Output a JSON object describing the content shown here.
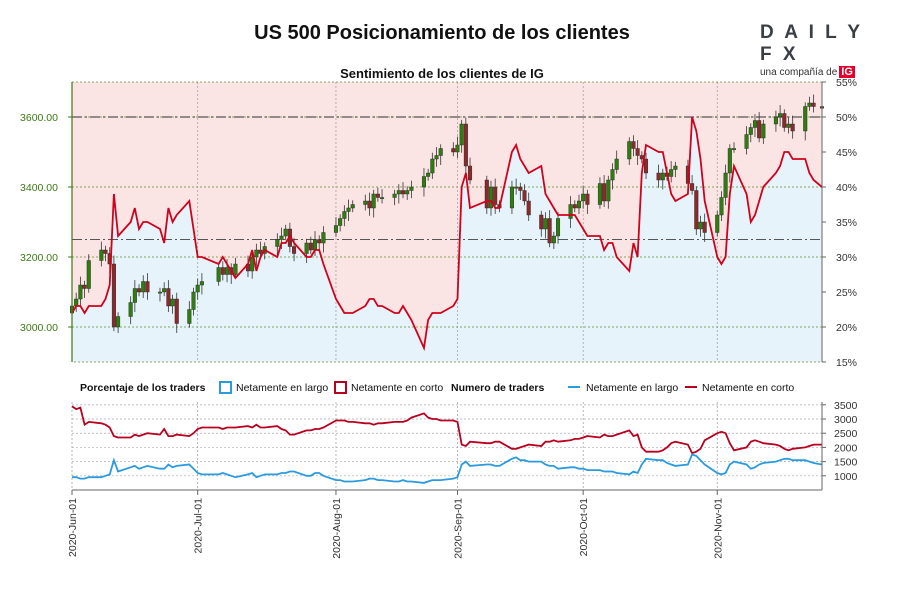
{
  "title": "US 500 Posicionamiento de los clientes",
  "logo": {
    "name": "DAILYFX",
    "tagline": "una compañía de",
    "brand": "IG"
  },
  "colors": {
    "net_long_fill": "#e6f3fb",
    "net_short_fill": "#fbe4e4",
    "sentiment_line": "#d0021b",
    "long_line": "#2b9be0",
    "short_line": "#b8001f",
    "candle_up": "#2e7d0e",
    "candle_down": "#8b2a2a",
    "price_axis": "#3b7a12"
  },
  "chart_data": [
    {
      "type": "line",
      "title": "Sentimiento de los clientes de IG",
      "x_dates": [
        "2020-06-01",
        "2020-06-02",
        "2020-06-03",
        "2020-06-04",
        "2020-06-05",
        "2020-06-08",
        "2020-06-09",
        "2020-06-10",
        "2020-06-11",
        "2020-06-12",
        "2020-06-15",
        "2020-06-16",
        "2020-06-17",
        "2020-06-18",
        "2020-06-19",
        "2020-06-22",
        "2020-06-23",
        "2020-06-24",
        "2020-06-25",
        "2020-06-26",
        "2020-06-29",
        "2020-06-30",
        "2020-07-01",
        "2020-07-02",
        "2020-07-06",
        "2020-07-07",
        "2020-07-08",
        "2020-07-09",
        "2020-07-10",
        "2020-07-13",
        "2020-07-14",
        "2020-07-15",
        "2020-07-16",
        "2020-07-17",
        "2020-07-20",
        "2020-07-21",
        "2020-07-22",
        "2020-07-23",
        "2020-07-24",
        "2020-07-27",
        "2020-07-28",
        "2020-07-29",
        "2020-07-30",
        "2020-07-31",
        "2020-08-03",
        "2020-08-04",
        "2020-08-05",
        "2020-08-06",
        "2020-08-07",
        "2020-08-10",
        "2020-08-11",
        "2020-08-12",
        "2020-08-13",
        "2020-08-14",
        "2020-08-17",
        "2020-08-18",
        "2020-08-19",
        "2020-08-20",
        "2020-08-21",
        "2020-08-24",
        "2020-08-25",
        "2020-08-26",
        "2020-08-27",
        "2020-08-28",
        "2020-08-31",
        "2020-09-01",
        "2020-09-02",
        "2020-09-03",
        "2020-09-04",
        "2020-09-08",
        "2020-09-09",
        "2020-09-10",
        "2020-09-11",
        "2020-09-14",
        "2020-09-15",
        "2020-09-16",
        "2020-09-17",
        "2020-09-18",
        "2020-09-21",
        "2020-09-22",
        "2020-09-23",
        "2020-09-24",
        "2020-09-25",
        "2020-09-28",
        "2020-09-29",
        "2020-09-30",
        "2020-10-01",
        "2020-10-02",
        "2020-10-05",
        "2020-10-06",
        "2020-10-07",
        "2020-10-08",
        "2020-10-09",
        "2020-10-12",
        "2020-10-13",
        "2020-10-14",
        "2020-10-15",
        "2020-10-16",
        "2020-10-19",
        "2020-10-20",
        "2020-10-21",
        "2020-10-22",
        "2020-10-23",
        "2020-10-26",
        "2020-10-27",
        "2020-10-28",
        "2020-10-29",
        "2020-10-30",
        "2020-11-02",
        "2020-11-03",
        "2020-11-04",
        "2020-11-05",
        "2020-11-06",
        "2020-11-09",
        "2020-11-10",
        "2020-11-11",
        "2020-11-12",
        "2020-11-13",
        "2020-11-16",
        "2020-11-17",
        "2020-11-18",
        "2020-11-19",
        "2020-11-20",
        "2020-11-23",
        "2020-11-24",
        "2020-11-25",
        "2020-11-27"
      ],
      "price_close": [
        3060,
        3080,
        3120,
        3110,
        3190,
        3220,
        3210,
        3180,
        3000,
        3030,
        3070,
        3110,
        3100,
        3130,
        3100,
        3100,
        3110,
        3060,
        3080,
        3010,
        3050,
        3100,
        3120,
        3130,
        3170,
        3150,
        3170,
        3150,
        3180,
        3160,
        3200,
        3220,
        3210,
        3230,
        3250,
        3260,
        3280,
        3230,
        3210,
        3240,
        3220,
        3250,
        3240,
        3270,
        3290,
        3310,
        3330,
        3340,
        3350,
        3360,
        3340,
        3380,
        3370,
        3370,
        3380,
        3390,
        3380,
        3390,
        3400,
        3430,
        3440,
        3480,
        3490,
        3510,
        3500,
        3520,
        3580,
        3460,
        3420,
        3340,
        3400,
        3350,
        3340,
        3400,
        3400,
        3390,
        3360,
        3320,
        3280,
        3310,
        3240,
        3260,
        3310,
        3350,
        3340,
        3360,
        3380,
        3350,
        3410,
        3360,
        3420,
        3450,
        3480,
        3530,
        3510,
        3490,
        3480,
        3440,
        3420,
        3440,
        3430,
        3450,
        3460,
        3410,
        3390,
        3280,
        3300,
        3270,
        3320,
        3370,
        3440,
        3510,
        3510,
        3550,
        3570,
        3590,
        3540,
        3580,
        3600,
        3610,
        3570,
        3580,
        3560,
        3630,
        3640,
        3630,
        3625
      ],
      "sentiment_pct": [
        22,
        23,
        23,
        22,
        23,
        23,
        24,
        26,
        39,
        33,
        35,
        37,
        34,
        35,
        35,
        34,
        32,
        37,
        35,
        36,
        38,
        34,
        30,
        30,
        29,
        30,
        29,
        28,
        27,
        29,
        31,
        28,
        30,
        31,
        30,
        32,
        32,
        33,
        32,
        30,
        30,
        31,
        31,
        29,
        24,
        23,
        22,
        22,
        22,
        23,
        24,
        24,
        23,
        23,
        22,
        22,
        23,
        22,
        21,
        17,
        21,
        22,
        22,
        22,
        23,
        24,
        40,
        42,
        37,
        38,
        38,
        37,
        37,
        45,
        46,
        44,
        43,
        42,
        43,
        39,
        38,
        37,
        36,
        36,
        36,
        35,
        34,
        33,
        33,
        31,
        32,
        32,
        30,
        28,
        32,
        30,
        42,
        46,
        45,
        45,
        42,
        39,
        38,
        39,
        50,
        48,
        44,
        38,
        30,
        29,
        30,
        39,
        43,
        39,
        35,
        36,
        38,
        40,
        42,
        43,
        45,
        45,
        44,
        44,
        42,
        41,
        40
      ],
      "right_axis_ticks": [
        "55%",
        "50%",
        "45%",
        "40%",
        "35%",
        "30%",
        "25%",
        "20%",
        "15%"
      ],
      "left_axis_ticks": [
        "3600.00",
        "3400.00",
        "3200.00",
        "3000.00"
      ],
      "y_price_range": [
        2900,
        3700
      ],
      "y_pct_range": [
        15,
        55
      ],
      "reference_lines": {
        "long_dash": 50,
        "short_dash": 32.5
      },
      "grid": true
    },
    {
      "type": "line",
      "legend": {
        "label_pct": "Porcentaje de los traders",
        "pct_long": "Netamente en largo",
        "pct_short": "Netamente en corto",
        "label_count": "Numero de traders",
        "count_long": "Netamente en largo",
        "count_short": "Netamente en corto"
      },
      "series_long": [
        950,
        950,
        900,
        900,
        950,
        950,
        1000,
        1050,
        1550,
        1150,
        1300,
        1350,
        1250,
        1300,
        1350,
        1250,
        1250,
        1400,
        1300,
        1350,
        1400,
        1250,
        1100,
        1050,
        1050,
        1100,
        1050,
        1000,
        950,
        1050,
        1100,
        950,
        1000,
        1050,
        1050,
        1100,
        1100,
        1150,
        1150,
        1000,
        1000,
        1100,
        1100,
        1000,
        850,
        850,
        800,
        800,
        800,
        850,
        900,
        900,
        850,
        850,
        800,
        800,
        850,
        800,
        800,
        750,
        800,
        850,
        850,
        850,
        900,
        950,
        1400,
        1500,
        1350,
        1400,
        1400,
        1350,
        1350,
        1600,
        1650,
        1550,
        1550,
        1500,
        1500,
        1400,
        1350,
        1350,
        1250,
        1300,
        1300,
        1250,
        1250,
        1200,
        1200,
        1150,
        1150,
        1150,
        1100,
        1050,
        1150,
        1100,
        1400,
        1600,
        1550,
        1550,
        1450,
        1400,
        1350,
        1400,
        1750,
        1700,
        1550,
        1400,
        1100,
        1050,
        1100,
        1400,
        1500,
        1400,
        1250,
        1300,
        1400,
        1450,
        1500,
        1550,
        1600,
        1600,
        1550,
        1550,
        1500,
        1450,
        1400
      ],
      "series_short": [
        3450,
        3350,
        3400,
        2800,
        2900,
        2850,
        2800,
        2700,
        2400,
        2350,
        2350,
        2450,
        2400,
        2450,
        2500,
        2450,
        2650,
        2400,
        2400,
        2450,
        2400,
        2500,
        2650,
        2700,
        2700,
        2650,
        2700,
        2700,
        2700,
        2750,
        2700,
        2800,
        2700,
        2700,
        2750,
        2650,
        2600,
        2450,
        2450,
        2600,
        2600,
        2650,
        2650,
        2700,
        2950,
        2950,
        2950,
        2900,
        2900,
        2850,
        2850,
        2800,
        2850,
        2850,
        2900,
        2900,
        2900,
        2950,
        3050,
        3200,
        3050,
        3000,
        3000,
        2950,
        2950,
        2900,
        2100,
        2050,
        2200,
        2150,
        2150,
        2200,
        2200,
        1950,
        1950,
        2000,
        2050,
        2100,
        2050,
        2200,
        2200,
        2250,
        2200,
        2250,
        2300,
        2300,
        2350,
        2400,
        2350,
        2450,
        2400,
        2400,
        2450,
        2600,
        2400,
        2450,
        2000,
        1850,
        1850,
        1900,
        2000,
        2150,
        2200,
        2100,
        1800,
        1850,
        1950,
        2250,
        2500,
        2550,
        2500,
        2150,
        1900,
        2000,
        2200,
        2250,
        2200,
        2150,
        2100,
        2050,
        1950,
        1900,
        1950,
        2000,
        2050,
        2100,
        2100
      ],
      "right_axis_ticks": [
        "3500",
        "3000",
        "2500",
        "2000",
        "1500",
        "1000"
      ],
      "y_range": [
        500,
        3600
      ],
      "grid": true
    }
  ],
  "x_axis": {
    "tick_labels": [
      "2020-Jun-01",
      "2020-Jul-01",
      "2020-Aug-01",
      "2020-Sep-01",
      "2020-Oct-01",
      "2020-Nov-01"
    ],
    "tick_dates": [
      "2020-06-01",
      "2020-07-01",
      "2020-08-03",
      "2020-09-01",
      "2020-10-01",
      "2020-11-02"
    ]
  }
}
